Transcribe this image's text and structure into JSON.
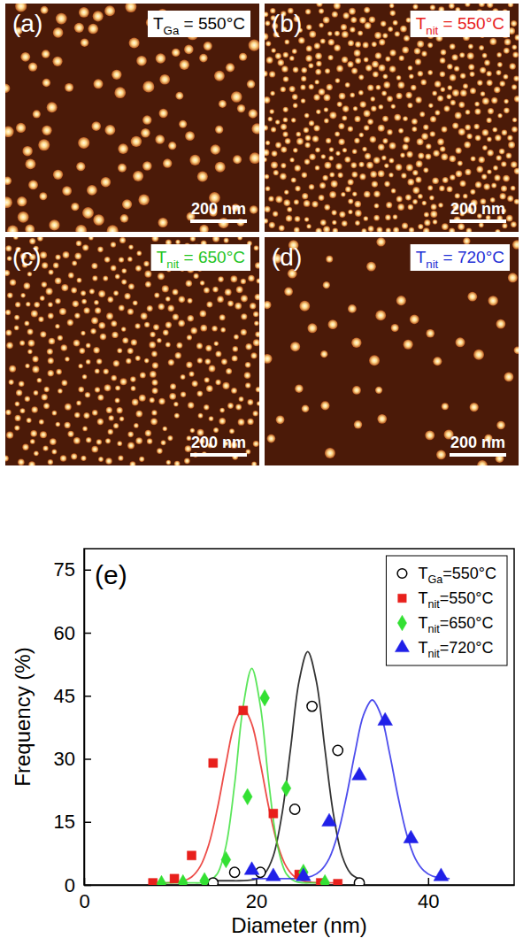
{
  "images": [
    {
      "letter": "(a)",
      "label": "TGa = 550°C",
      "color": "#000000",
      "scale_bar": "200 nm"
    },
    {
      "letter": "(b)",
      "label": "Tnit = 550°C",
      "color": "#e8201c",
      "scale_bar": "200 nm"
    },
    {
      "letter": "(c)",
      "label": "Tnit = 650°C",
      "color": "#1fc41f",
      "scale_bar": "200 nm"
    },
    {
      "letter": "(d)",
      "label": "Tnit = 720°C",
      "color": "#1f2fd6",
      "scale_bar": "200 nm"
    }
  ],
  "chart_data": {
    "type": "scatter",
    "title": "(e)",
    "x_label": "Diameter (nm)",
    "y_label": "Frequency (%)",
    "xlim": [
      0,
      50
    ],
    "ylim": [
      0,
      80
    ],
    "xticks": [
      0,
      20,
      40
    ],
    "yticks": [
      0,
      15,
      30,
      45,
      60,
      75
    ],
    "legend": "upper right",
    "series": [
      {
        "name": "TGa=550°C",
        "color": "#000000",
        "marker": "circle-open",
        "x": [
          15,
          17.5,
          20.5,
          24.5,
          26.5,
          29.5,
          32
        ],
        "values": [
          0.5,
          3,
          3,
          18,
          42.5,
          32,
          0.5
        ],
        "fit_x": [
          15,
          16,
          17,
          18,
          19,
          20,
          21,
          22,
          23,
          24,
          25,
          26,
          27,
          28,
          29,
          30,
          31,
          32
        ],
        "fit_values": [
          1.0,
          1.0,
          1.0,
          1.0,
          1.1,
          1.4,
          2.7,
          6.9,
          16.7,
          32.3,
          48.5,
          55.5,
          48.5,
          32.3,
          16.7,
          6.9,
          2.7,
          1.4
        ]
      },
      {
        "name": "Tnit=550°C",
        "color": "#e8201c",
        "marker": "square",
        "x": [
          8,
          10.5,
          12.5,
          15,
          18.5,
          22,
          25,
          27.5,
          29.5
        ],
        "values": [
          0.5,
          1.5,
          7,
          29,
          41.5,
          17,
          2.5,
          0.5,
          0.3
        ],
        "fit_x": [
          8.5,
          9.5,
          10.5,
          11.5,
          12.5,
          13.5,
          14.5,
          15.5,
          16.5,
          17.5,
          18.5,
          19.5,
          20.5,
          21.5,
          22.5,
          23.5,
          24.5,
          25.5,
          26.5,
          27.5,
          28.5,
          29.5
        ],
        "fit_values": [
          0.5,
          0.5,
          0.6,
          0.9,
          1.9,
          4.4,
          9.6,
          18.2,
          28.9,
          38.3,
          42,
          38.3,
          28.9,
          18.2,
          9.6,
          4.4,
          1.9,
          0.9,
          0.6,
          0.5,
          0.5,
          0.5
        ]
      },
      {
        "name": "Tnit=650°C",
        "color": "#33e033",
        "marker": "diamond",
        "x": [
          9,
          11.5,
          14,
          16.5,
          19,
          21,
          23.5,
          25.5,
          28
        ],
        "values": [
          0.3,
          0.5,
          1,
          6,
          21,
          44.5,
          23,
          3,
          0.5
        ],
        "fit_x": [
          9.5,
          10.5,
          11.5,
          12.5,
          13.5,
          14.5,
          15.5,
          16.5,
          17.5,
          18.5,
          19.5,
          20.5,
          21.5,
          22.5,
          23.5,
          24.5,
          25.5,
          26.5,
          27.5,
          28.5
        ],
        "fit_values": [
          0.5,
          0.5,
          0.5,
          0.5,
          0.5,
          0.9,
          2.7,
          9.3,
          23.9,
          42.5,
          51.5,
          42.5,
          23.9,
          9.3,
          2.7,
          0.9,
          0.5,
          0.5,
          0.5,
          0.5
        ]
      },
      {
        "name": "Tnit=720°C",
        "color": "#2020e8",
        "marker": "triangle",
        "x": [
          19.5,
          22,
          25.5,
          28.5,
          32,
          35,
          38,
          41.5
        ],
        "values": [
          3.5,
          2,
          2,
          15,
          26,
          39,
          11,
          2
        ],
        "fit_x": [
          19.5,
          20.5,
          21.5,
          22.5,
          23.5,
          24.5,
          25.5,
          26.5,
          27.5,
          28.5,
          29.5,
          30.5,
          31.5,
          32.5,
          33.5,
          34.5,
          35.5,
          36.5,
          37.5,
          38.5,
          39.5,
          40.5,
          41.5,
          42.5
        ],
        "fit_values": [
          1.5,
          1.5,
          1.5,
          1.5,
          1.5,
          1.5,
          1.7,
          2.1,
          3.4,
          6.3,
          12.1,
          21,
          31.5,
          40.5,
          44,
          40.5,
          31.5,
          21,
          12.1,
          6.3,
          3.4,
          2.1,
          1.7,
          1.5
        ]
      }
    ]
  }
}
